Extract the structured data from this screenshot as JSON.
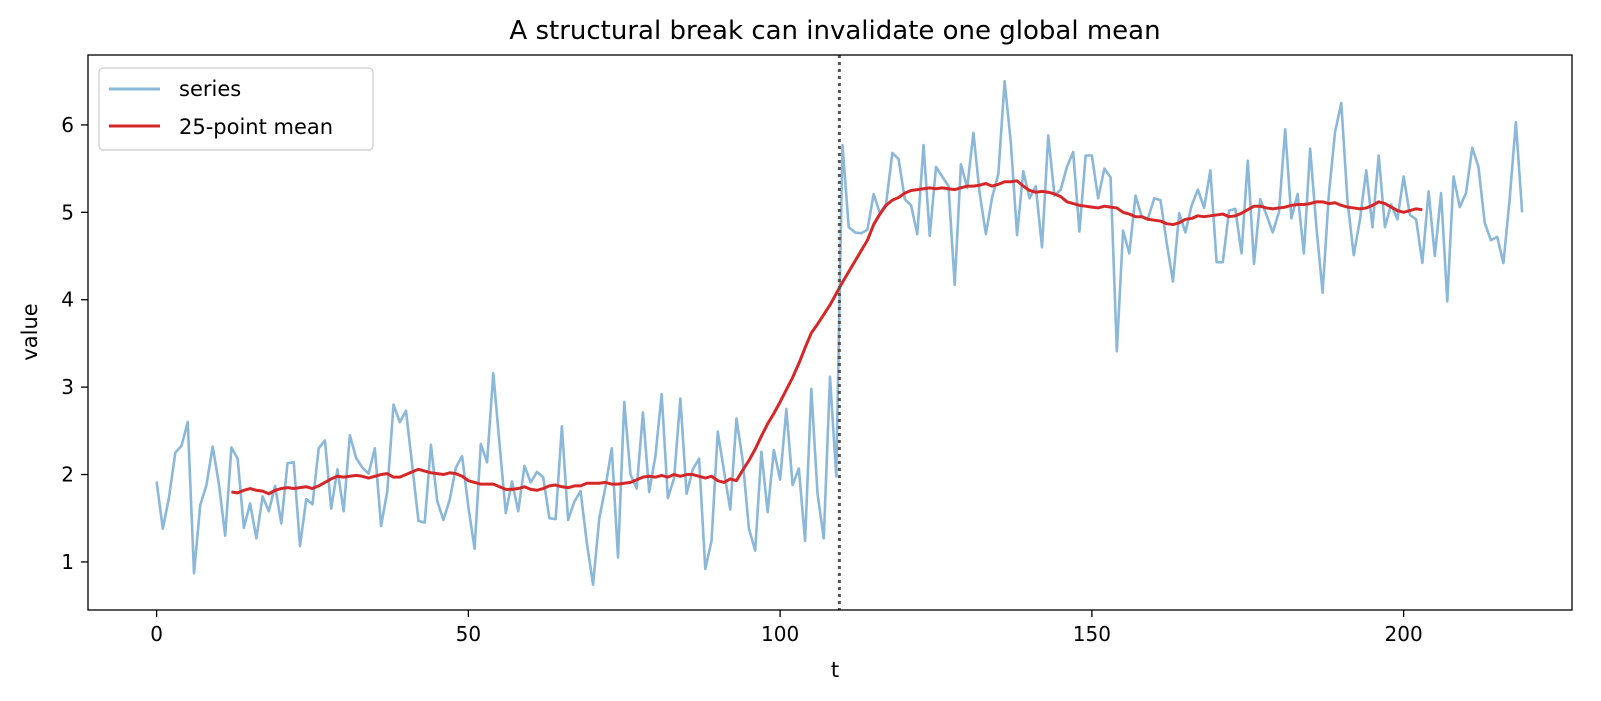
{
  "chart_data": {
    "type": "line",
    "title": "A structural break can invalidate one global mean",
    "xlabel": "t",
    "ylabel": "value",
    "xlim": [
      -11,
      227
    ],
    "ylim": [
      0.45,
      6.8
    ],
    "xticks": [
      0,
      50,
      100,
      150,
      200
    ],
    "yticks": [
      1,
      2,
      3,
      4,
      5,
      6
    ],
    "grid": false,
    "legend_position": "top-left",
    "break_line": {
      "x": 109.5,
      "style": "dotted",
      "color": "#555555"
    },
    "series": [
      {
        "name": "series",
        "color": "#8bb8d9",
        "x_start": 0,
        "x_step": 1,
        "values": [
          1.92,
          1.38,
          1.74,
          2.25,
          2.33,
          2.6,
          0.87,
          1.65,
          1.88,
          2.32,
          1.89,
          1.3,
          2.31,
          2.18,
          1.39,
          1.67,
          1.27,
          1.75,
          1.58,
          1.87,
          1.44,
          2.13,
          2.14,
          1.18,
          1.72,
          1.66,
          2.3,
          2.39,
          1.61,
          2.06,
          1.58,
          2.45,
          2.19,
          2.08,
          2.01,
          2.3,
          1.41,
          1.81,
          2.8,
          2.6,
          2.73,
          2.1,
          1.47,
          1.45,
          2.34,
          1.7,
          1.48,
          1.71,
          2.08,
          2.21,
          1.63,
          1.15,
          2.35,
          2.14,
          3.16,
          2.35,
          1.56,
          1.92,
          1.58,
          2.1,
          1.91,
          2.03,
          1.97,
          1.5,
          1.49,
          2.55,
          1.48,
          1.69,
          1.81,
          1.22,
          0.74,
          1.5,
          1.86,
          2.3,
          1.05,
          2.83,
          2.0,
          1.84,
          2.71,
          1.8,
          2.21,
          2.92,
          1.73,
          1.96,
          2.87,
          1.78,
          2.06,
          2.18,
          0.92,
          1.24,
          2.49,
          2.04,
          1.6,
          2.64,
          2.16,
          1.38,
          1.13,
          2.26,
          1.57,
          2.28,
          1.94,
          2.75,
          1.88,
          2.07,
          1.24,
          2.98,
          1.78,
          1.27,
          3.12,
          1.98,
          5.77,
          4.83,
          4.77,
          4.76,
          4.8,
          5.21,
          4.99,
          5.1,
          5.68,
          5.61,
          5.15,
          5.08,
          4.75,
          5.77,
          4.73,
          5.52,
          5.41,
          5.3,
          4.17,
          5.55,
          5.28,
          5.91,
          5.22,
          4.75,
          5.17,
          5.44,
          6.5,
          5.8,
          4.74,
          5.47,
          5.16,
          5.3,
          4.6,
          5.88,
          5.19,
          5.26,
          5.52,
          5.69,
          4.78,
          5.65,
          5.65,
          5.16,
          5.5,
          5.4,
          3.41,
          4.79,
          4.53,
          5.19,
          4.95,
          4.93,
          5.16,
          5.14,
          4.65,
          4.21,
          4.99,
          4.77,
          5.08,
          5.26,
          5.05,
          5.48,
          4.43,
          4.43,
          5.02,
          5.04,
          4.53,
          5.59,
          4.41,
          5.15,
          4.97,
          4.77,
          5.0,
          5.95,
          4.93,
          5.21,
          4.53,
          5.73,
          4.84,
          4.08,
          5.2,
          5.92,
          6.25,
          5.12,
          4.51,
          4.92,
          5.48,
          4.83,
          5.65,
          4.83,
          5.09,
          4.92,
          5.41,
          4.97,
          4.92,
          4.42,
          5.24,
          4.5,
          5.22,
          3.98,
          5.41,
          5.06,
          5.22,
          5.74,
          5.52,
          4.88,
          4.68,
          4.72,
          4.42,
          5.15,
          6.03,
          5.0
        ]
      },
      {
        "name": "25-point mean",
        "color": "#d62728",
        "x_start": 12,
        "x_step": 1,
        "values": [
          1.8,
          1.79,
          1.82,
          1.84,
          1.82,
          1.81,
          1.78,
          1.82,
          1.84,
          1.85,
          1.84,
          1.85,
          1.86,
          1.84,
          1.87,
          1.91,
          1.95,
          1.98,
          1.97,
          1.98,
          1.99,
          1.98,
          1.96,
          1.98,
          2.0,
          2.01,
          1.97,
          1.97,
          2.0,
          2.03,
          2.06,
          2.04,
          2.02,
          2.01,
          2.0,
          2.02,
          2.01,
          1.98,
          1.93,
          1.91,
          1.89,
          1.89,
          1.89,
          1.86,
          1.83,
          1.83,
          1.84,
          1.86,
          1.83,
          1.82,
          1.84,
          1.87,
          1.88,
          1.86,
          1.85,
          1.87,
          1.87,
          1.9,
          1.9,
          1.9,
          1.91,
          1.89,
          1.89,
          1.9,
          1.91,
          1.94,
          1.97,
          1.98,
          1.97,
          1.99,
          1.97,
          2.0,
          1.98,
          2.0,
          2.0,
          1.98,
          1.96,
          1.98,
          1.93,
          1.91,
          1.95,
          1.93,
          2.05,
          2.16,
          2.29,
          2.44,
          2.58,
          2.7,
          2.83,
          2.97,
          3.11,
          3.27,
          3.45,
          3.62,
          3.72,
          3.83,
          3.94,
          4.07,
          4.2,
          4.32,
          4.44,
          4.56,
          4.68,
          4.86,
          4.98,
          5.08,
          5.14,
          5.17,
          5.22,
          5.25,
          5.26,
          5.27,
          5.28,
          5.27,
          5.28,
          5.27,
          5.26,
          5.28,
          5.3,
          5.3,
          5.31,
          5.33,
          5.3,
          5.32,
          5.35,
          5.35,
          5.36,
          5.3,
          5.25,
          5.23,
          5.24,
          5.23,
          5.21,
          5.18,
          5.12,
          5.1,
          5.08,
          5.07,
          5.06,
          5.05,
          5.07,
          5.06,
          5.05,
          5.0,
          4.98,
          4.95,
          4.95,
          4.92,
          4.91,
          4.9,
          4.87,
          4.86,
          4.88,
          4.92,
          4.93,
          4.96,
          4.95,
          4.96,
          4.97,
          4.98,
          4.95,
          4.96,
          4.99,
          5.03,
          5.07,
          5.07,
          5.05,
          5.04,
          5.05,
          5.06,
          5.08,
          5.09,
          5.09,
          5.1,
          5.12,
          5.12,
          5.1,
          5.11,
          5.08,
          5.06,
          5.05,
          5.04,
          5.05,
          5.08,
          5.12,
          5.1,
          5.06,
          5.02,
          5.0,
          5.02,
          5.04,
          5.03
        ]
      }
    ]
  }
}
